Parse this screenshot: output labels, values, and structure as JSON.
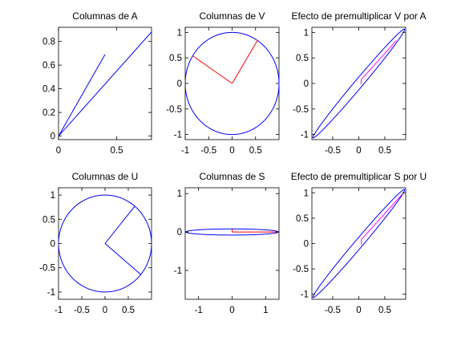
{
  "chart_data": [
    {
      "type": "line",
      "title": "Columnas de A",
      "xlim": [
        0,
        0.8
      ],
      "ylim": [
        -0.03,
        0.92
      ],
      "xticks": [
        0,
        0.5
      ],
      "xticklabels": [
        "0",
        "0.5"
      ],
      "yticks": [
        0,
        0.2,
        0.4,
        0.6,
        0.8
      ],
      "yticklabels": [
        "0",
        "0.2",
        "0.4",
        "0.6",
        "0.8"
      ],
      "series": [
        {
          "color": "#0000ff",
          "segments": [
            [
              [
                0,
                0
              ],
              [
                0.4,
                0.69
              ]
            ],
            [
              [
                0,
                0
              ],
              [
                0.8,
                0.88
              ]
            ]
          ]
        }
      ]
    },
    {
      "type": "line",
      "title": "Columnas de V",
      "xlim": [
        -1,
        1
      ],
      "ylim": [
        -1.1,
        1.1
      ],
      "xticks": [
        -1,
        -0.5,
        0,
        0.5
      ],
      "xticklabels": [
        "-1",
        "-0.5",
        "0",
        "0.5"
      ],
      "yticks": [
        -1,
        -0.5,
        0,
        0.5,
        1
      ],
      "yticklabels": [
        "-1",
        "-0.5",
        "0",
        "0.5",
        "1"
      ],
      "series": [
        {
          "color": "#0000ff",
          "curve": "circle",
          "params": {
            "a": 1,
            "b": 1,
            "angle_deg": 0
          }
        },
        {
          "color": "#ff0000",
          "segments": [
            [
              [
                0,
                0
              ],
              [
                0.54,
                0.84
              ]
            ],
            [
              [
                0,
                0
              ],
              [
                -0.84,
                0.54
              ]
            ]
          ]
        }
      ]
    },
    {
      "type": "line",
      "title": "Efecto de premultiplicar V por A",
      "xlim": [
        -0.9,
        0.9
      ],
      "ylim": [
        -1.1,
        1.1
      ],
      "xticks": [
        -0.5,
        0,
        0.5
      ],
      "xticklabels": [
        "-0.5",
        "0",
        "0.5"
      ],
      "yticks": [
        -1,
        -0.5,
        0,
        0.5,
        1
      ],
      "yticklabels": [
        "-1",
        "-0.5",
        "0",
        "0.5",
        "1"
      ],
      "series": [
        {
          "color": "#0000ff",
          "curve": "ellipse",
          "params": {
            "a": 1.38,
            "b": 0.08,
            "angle_deg": 50.5
          }
        },
        {
          "color": "#ff00ff",
          "segments": [
            [
              [
                0.05,
                0.08
              ],
              [
                0.72,
                0.84
              ]
            ],
            [
              [
                0.05,
                0.08
              ],
              [
                0.04,
                -0.01
              ]
            ]
          ]
        }
      ]
    },
    {
      "type": "line",
      "title": "Columnas de U",
      "xlim": [
        -1,
        1
      ],
      "ylim": [
        -1.15,
        1.15
      ],
      "xticks": [
        -1,
        -0.5,
        0,
        0.5
      ],
      "xticklabels": [
        "-1",
        "-0.5",
        "0",
        "0.5"
      ],
      "yticks": [
        -1,
        -0.5,
        0,
        0.5,
        1
      ],
      "yticklabels": [
        "-1",
        "-0.5",
        "0",
        "0.5",
        "1"
      ],
      "series": [
        {
          "color": "#0000ff",
          "curve": "circle",
          "params": {
            "a": 1,
            "b": 1,
            "angle_deg": 0
          }
        },
        {
          "color": "#0000ff",
          "segments": [
            [
              [
                0,
                0
              ],
              [
                0.64,
                0.77
              ]
            ],
            [
              [
                0,
                0
              ],
              [
                0.77,
                -0.64
              ]
            ]
          ]
        }
      ]
    },
    {
      "type": "line",
      "title": "Columnas de S",
      "xlim": [
        -1.4,
        1.4
      ],
      "ylim": [
        -1.75,
        1.15
      ],
      "xticks": [
        -1,
        0,
        1
      ],
      "xticklabels": [
        "-1",
        "0",
        "1"
      ],
      "yticks": [
        -1,
        0,
        1
      ],
      "yticklabels": [
        "-1",
        "0",
        "1"
      ],
      "series": [
        {
          "color": "#0000ff",
          "curve": "ellipse",
          "params": {
            "a": 1.38,
            "b": 0.08,
            "angle_deg": 0
          }
        },
        {
          "color": "#ff0000",
          "segments": [
            [
              [
                0,
                0
              ],
              [
                1.38,
                0
              ]
            ],
            [
              [
                0,
                0
              ],
              [
                0,
                0.08
              ]
            ]
          ]
        }
      ]
    },
    {
      "type": "line",
      "title": "Efecto de premultiplicar S por U",
      "xlim": [
        -0.9,
        0.9
      ],
      "ylim": [
        -1.1,
        1.1
      ],
      "xticks": [
        -0.5,
        0,
        0.5
      ],
      "xticklabels": [
        "-0.5",
        "0",
        "0.5"
      ],
      "yticks": [
        -1,
        -0.5,
        0,
        0.5,
        1
      ],
      "yticklabels": [
        "-1",
        "-0.5",
        "0",
        "0.5",
        "1"
      ],
      "series": [
        {
          "color": "#0000ff",
          "curve": "ellipse",
          "params": {
            "a": 1.38,
            "b": 0.08,
            "angle_deg": 50.5
          }
        },
        {
          "color": "#ff00ff",
          "segments": [
            [
              [
                0.05,
                0.08
              ],
              [
                0.84,
                0.98
              ]
            ],
            [
              [
                0.05,
                0.08
              ],
              [
                0.05,
                -0.02
              ]
            ]
          ]
        }
      ]
    }
  ]
}
